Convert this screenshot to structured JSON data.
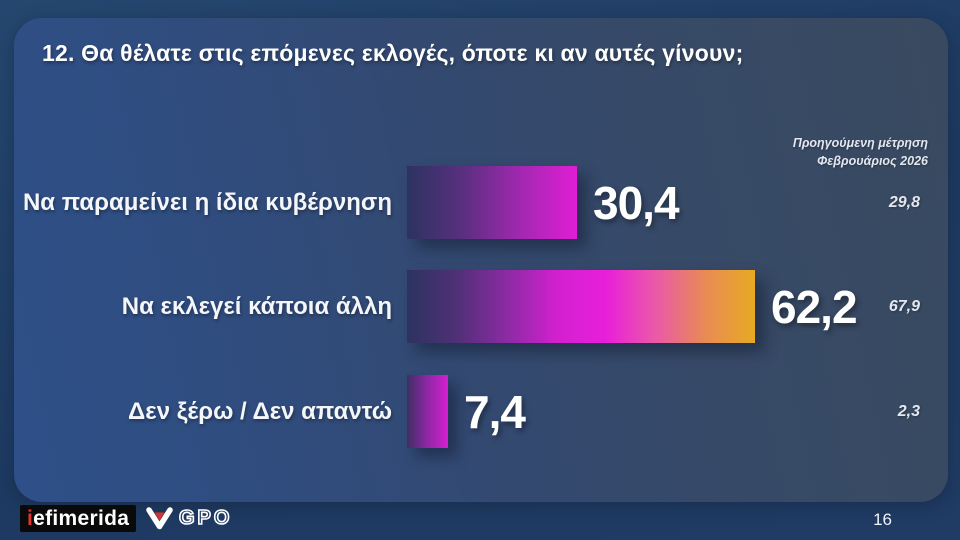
{
  "slide": {
    "title": "12. Θα θέλατε στις επόμενες εκλογές, όποτε κι αν αυτές γίνουν;",
    "page_number": "16"
  },
  "note": {
    "line1": "Προηγούμενη μέτρηση",
    "line2": "Φεβρουάριος 2026"
  },
  "rows": [
    {
      "label": "Να παραμείνει η ίδια κυβέρνηση",
      "value": 30.4,
      "value_label": "30,4",
      "previous_label": "29,8",
      "gradient": [
        "#2c3360",
        "#5a2f80",
        "#a228b0",
        "#e01ed6"
      ]
    },
    {
      "label": "Να εκλεγεί κάποια άλλη",
      "value": 62.2,
      "value_label": "62,2",
      "previous_label": "67,9",
      "gradient": [
        "#2c3360",
        "#4f3076",
        "#8c2ba4",
        "#d220cf",
        "#e81fd9",
        "#ea58aa",
        "#e88c53",
        "#e7aa22"
      ]
    },
    {
      "label": "Δεν ξέρω / Δεν απαντώ",
      "value": 7.4,
      "value_label": "7,4",
      "previous_label": "2,3",
      "gradient": [
        "#3f2f63",
        "#8f27a5",
        "#d520cf"
      ]
    }
  ],
  "footer": {
    "iefimerida_i": "i",
    "iefimerida_rest": "efimerida",
    "gpo_label": "GPO"
  },
  "colors": {
    "background": "#1f3a63",
    "card_left": "#2e4f88",
    "card_right": "#394a60",
    "accent_magenta": "#e01ed6",
    "accent_gold": "#e7aa22",
    "logo_red": "#e0342f",
    "logo_black": "#0a0a0a"
  },
  "chart_data": {
    "type": "bar",
    "orientation": "horizontal",
    "title": "12. Θα θέλατε στις επόμενες εκλογές, όποτε κι αν αυτές γίνουν;",
    "categories": [
      "Να παραμείνει η ίδια κυβέρνηση",
      "Να εκλεγεί κάποια άλλη",
      "Δεν ξέρω / Δεν απαντώ"
    ],
    "series": [
      {
        "name": "",
        "values": [
          30.4,
          62.2,
          7.4
        ]
      },
      {
        "name": "Προηγούμενη μέτρηση Φεβρουάριος 2026",
        "values": [
          29.8,
          67.9,
          2.3
        ]
      }
    ],
    "xlim": [
      0,
      100
    ],
    "grid": false,
    "legend_position": "none",
    "value_format": "comma-decimal"
  }
}
